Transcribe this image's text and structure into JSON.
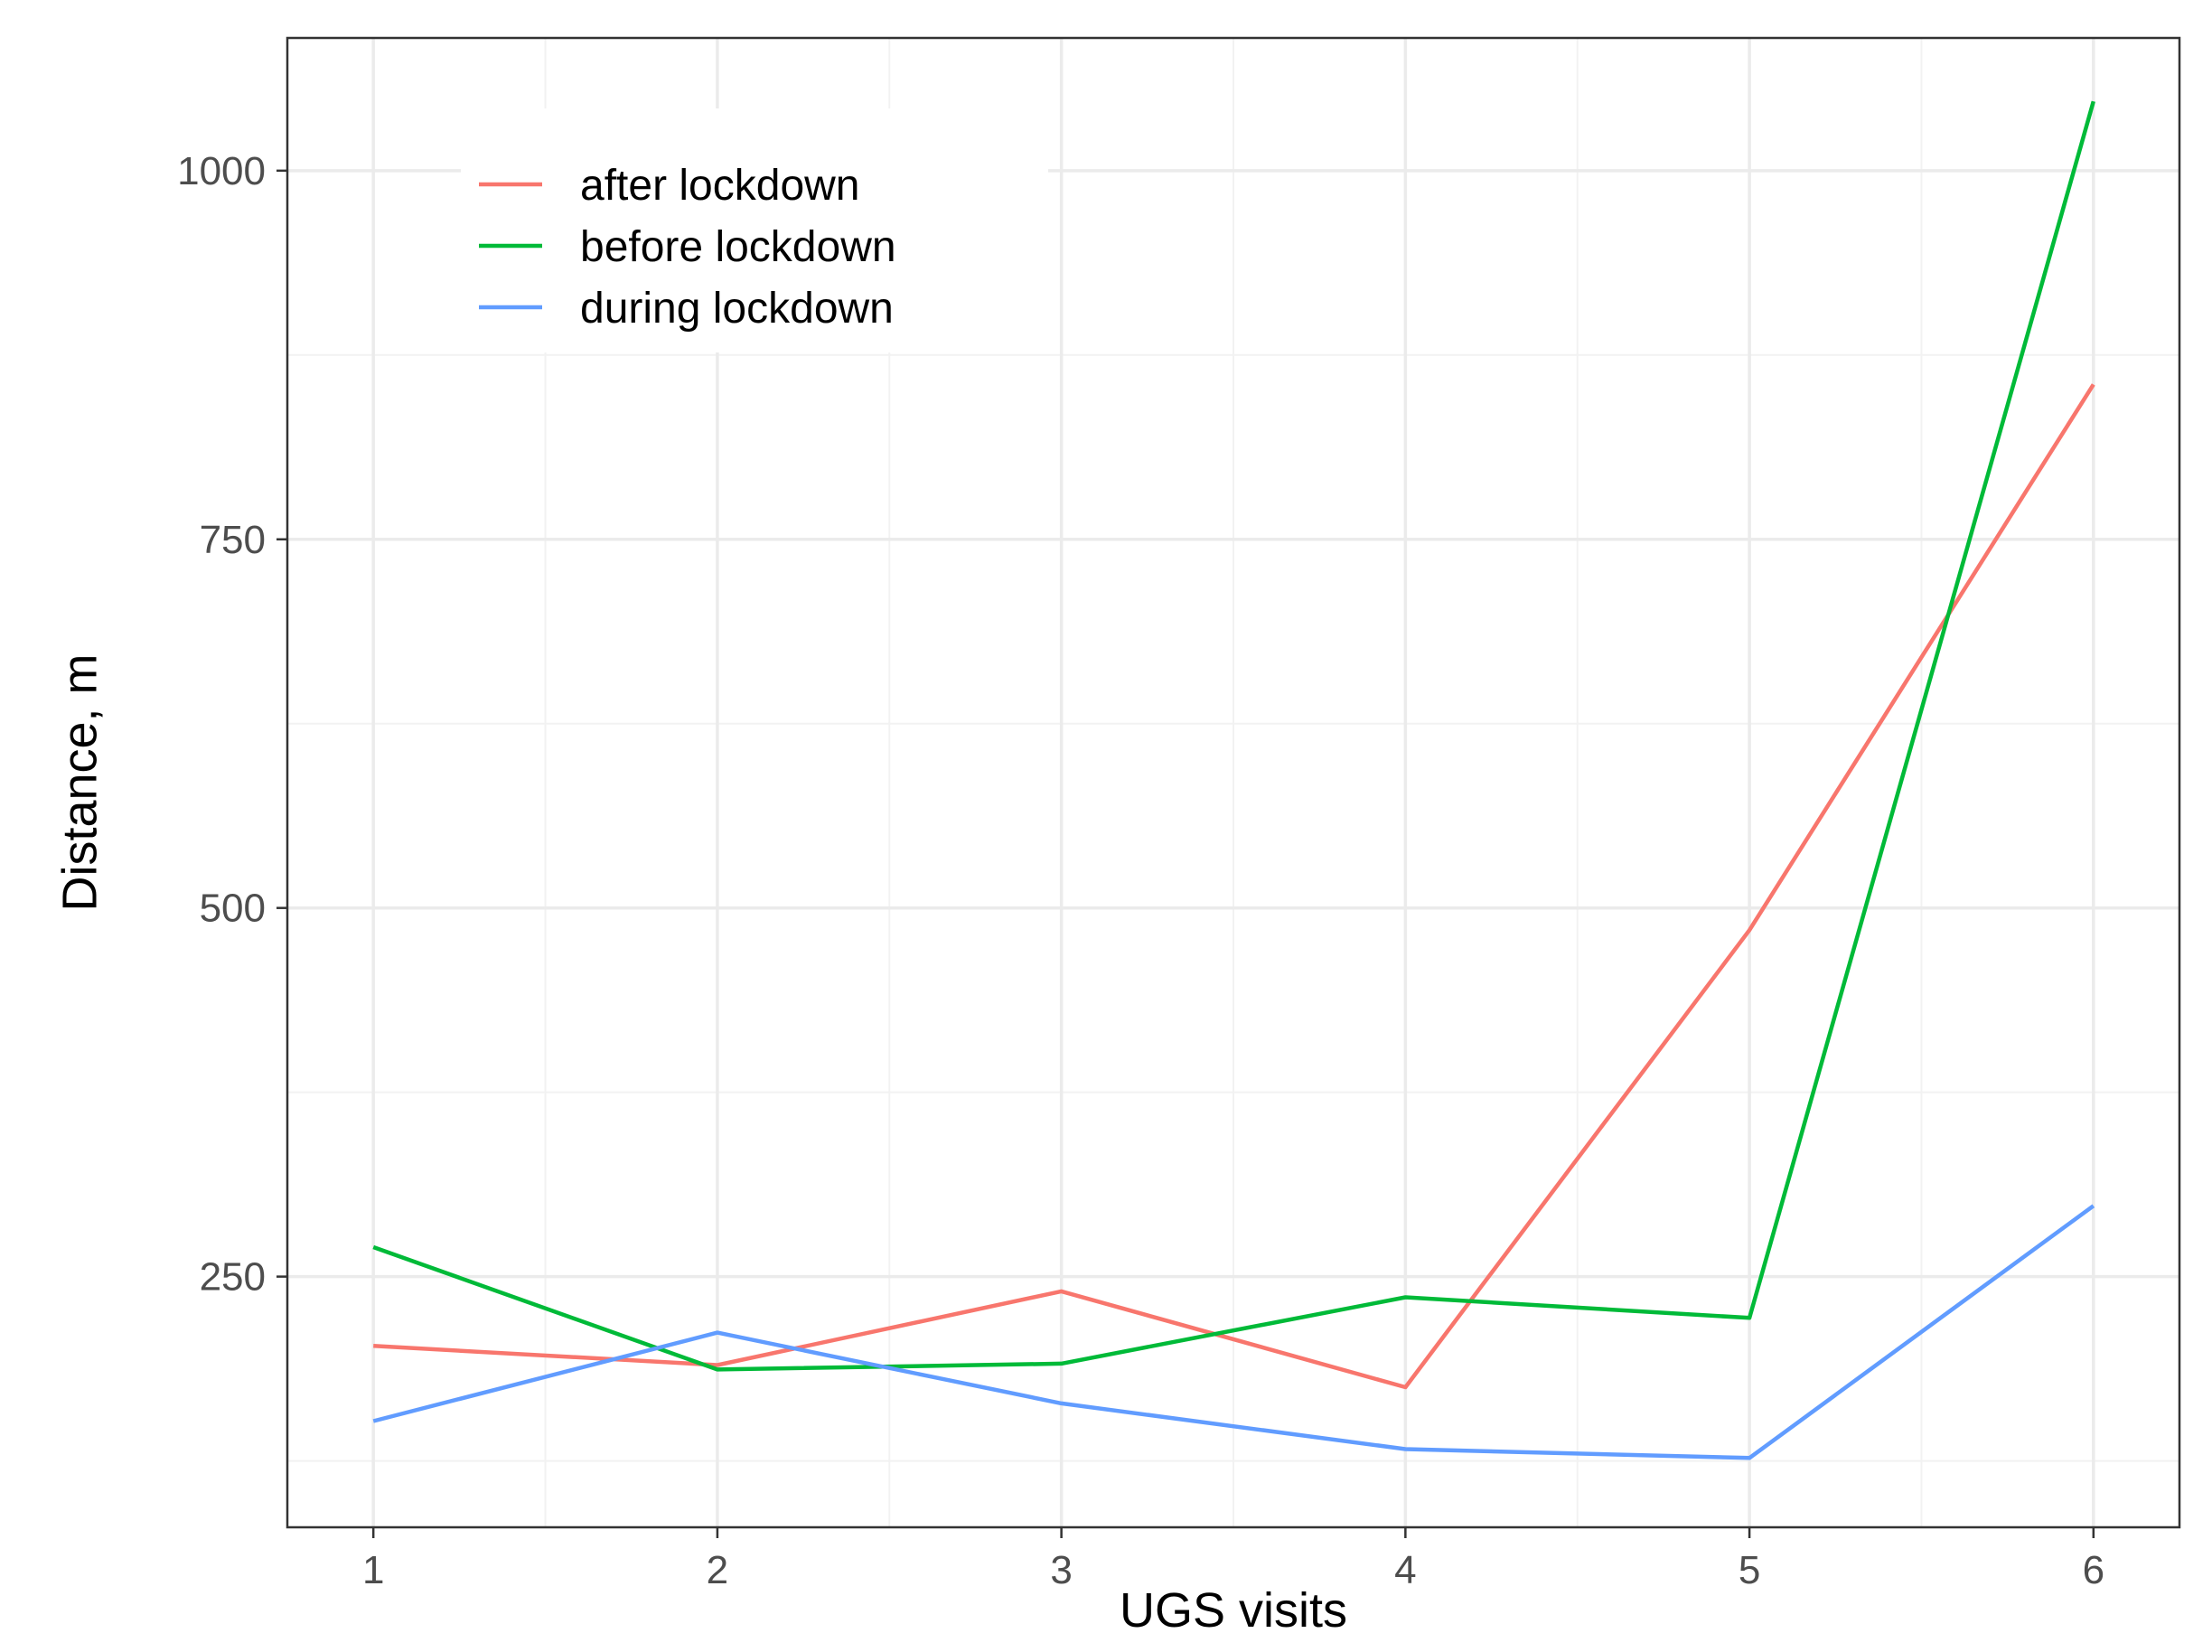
{
  "chart_data": {
    "type": "line",
    "title": "",
    "xlabel": "UGS visits",
    "ylabel": "Distance, m",
    "x": [
      1,
      2,
      3,
      4,
      5,
      6
    ],
    "xticks": [
      "1",
      "2",
      "3",
      "4",
      "5",
      "6"
    ],
    "xlim": [
      0.75,
      6.25
    ],
    "yticks": [
      250,
      500,
      750,
      1000
    ],
    "ylim": [
      80,
      1090
    ],
    "grid": true,
    "legend": "top-left",
    "series": [
      {
        "name": "after lockdown",
        "color": "#F8766D",
        "values": [
          203,
          190,
          240,
          175,
          485,
          855
        ]
      },
      {
        "name": "before lockdown",
        "color": "#00BA38",
        "values": [
          270,
          187,
          191,
          236,
          222,
          1047
        ]
      },
      {
        "name": "during lockdown",
        "color": "#619CFF",
        "values": [
          152,
          212,
          164,
          133,
          127,
          298
        ]
      }
    ]
  }
}
